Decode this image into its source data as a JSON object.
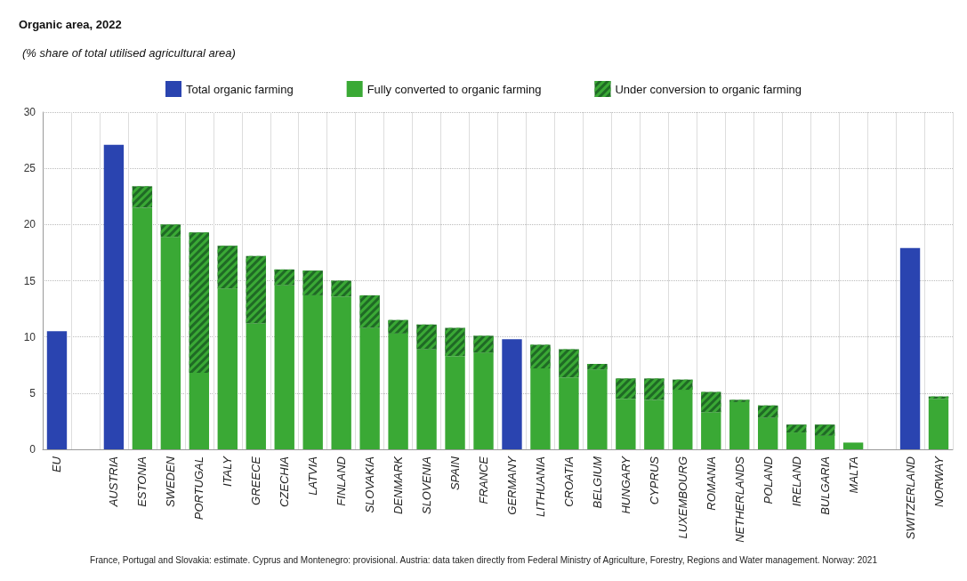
{
  "chart_data": {
    "type": "bar",
    "title": "Organic area, 2022",
    "subtitle": "(% share of total utilised agricultural area)",
    "stacked": true,
    "grid": true,
    "legend": "top",
    "ylim": [
      0,
      30
    ],
    "yticks": [
      0,
      5,
      10,
      15,
      20,
      25,
      30
    ],
    "categories": [
      "EU",
      null,
      "AUSTRIA",
      "ESTONIA",
      "SWEDEN",
      "PORTUGAL",
      "ITALY",
      "GREECE",
      "CZECHIA",
      "LATVIA",
      "FINLAND",
      "SLOVAKIA",
      "DENMARK",
      "SLOVENIA",
      "SPAIN",
      "FRANCE",
      "GERMANY",
      "LITHUANIA",
      "CROATIA",
      "BELGIUM",
      "HUNGARY",
      "CYPRUS",
      "LUXEMBOURG",
      "ROMANIA",
      "NETHERLANDS",
      "POLAND",
      "IRELAND",
      "BULGARIA",
      "MALTA",
      null,
      "SWITZERLAND",
      "NORWAY"
    ],
    "series": [
      {
        "name": "Total organic farming",
        "color": "#2a44b0",
        "values": [
          10.5,
          null,
          27.1,
          null,
          null,
          null,
          null,
          null,
          null,
          null,
          null,
          null,
          null,
          null,
          null,
          null,
          9.8,
          null,
          null,
          null,
          null,
          null,
          null,
          null,
          null,
          null,
          null,
          null,
          null,
          null,
          17.9,
          null
        ]
      },
      {
        "name": "Fully converted to organic farming",
        "color": "#3aa935",
        "values": [
          null,
          null,
          null,
          21.5,
          18.9,
          6.8,
          14.3,
          11.2,
          14.6,
          13.7,
          13.6,
          10.8,
          10.3,
          8.9,
          8.3,
          8.6,
          null,
          7.2,
          6.4,
          7.1,
          4.5,
          4.4,
          5.3,
          3.3,
          4.2,
          2.8,
          1.5,
          1.2,
          0.6,
          null,
          null,
          4.5
        ]
      },
      {
        "name": "Under conversion to organic farming",
        "color": "#1f6a25",
        "values": [
          null,
          null,
          null,
          1.9,
          1.1,
          12.5,
          3.8,
          6.0,
          1.4,
          2.2,
          1.4,
          2.9,
          1.2,
          2.2,
          2.5,
          1.5,
          null,
          2.1,
          2.5,
          0.5,
          1.8,
          1.9,
          0.9,
          1.8,
          0.2,
          1.1,
          0.7,
          1.0,
          null,
          null,
          null,
          0.2
        ]
      }
    ],
    "annotations": [
      "France, Portugal and Slovakia: estimate. Cyprus and Montenegro: provisional. Austria: data taken directly from Federal Ministry of Agriculture, Forestry, Regions and Water management. Norway: 2021"
    ]
  }
}
